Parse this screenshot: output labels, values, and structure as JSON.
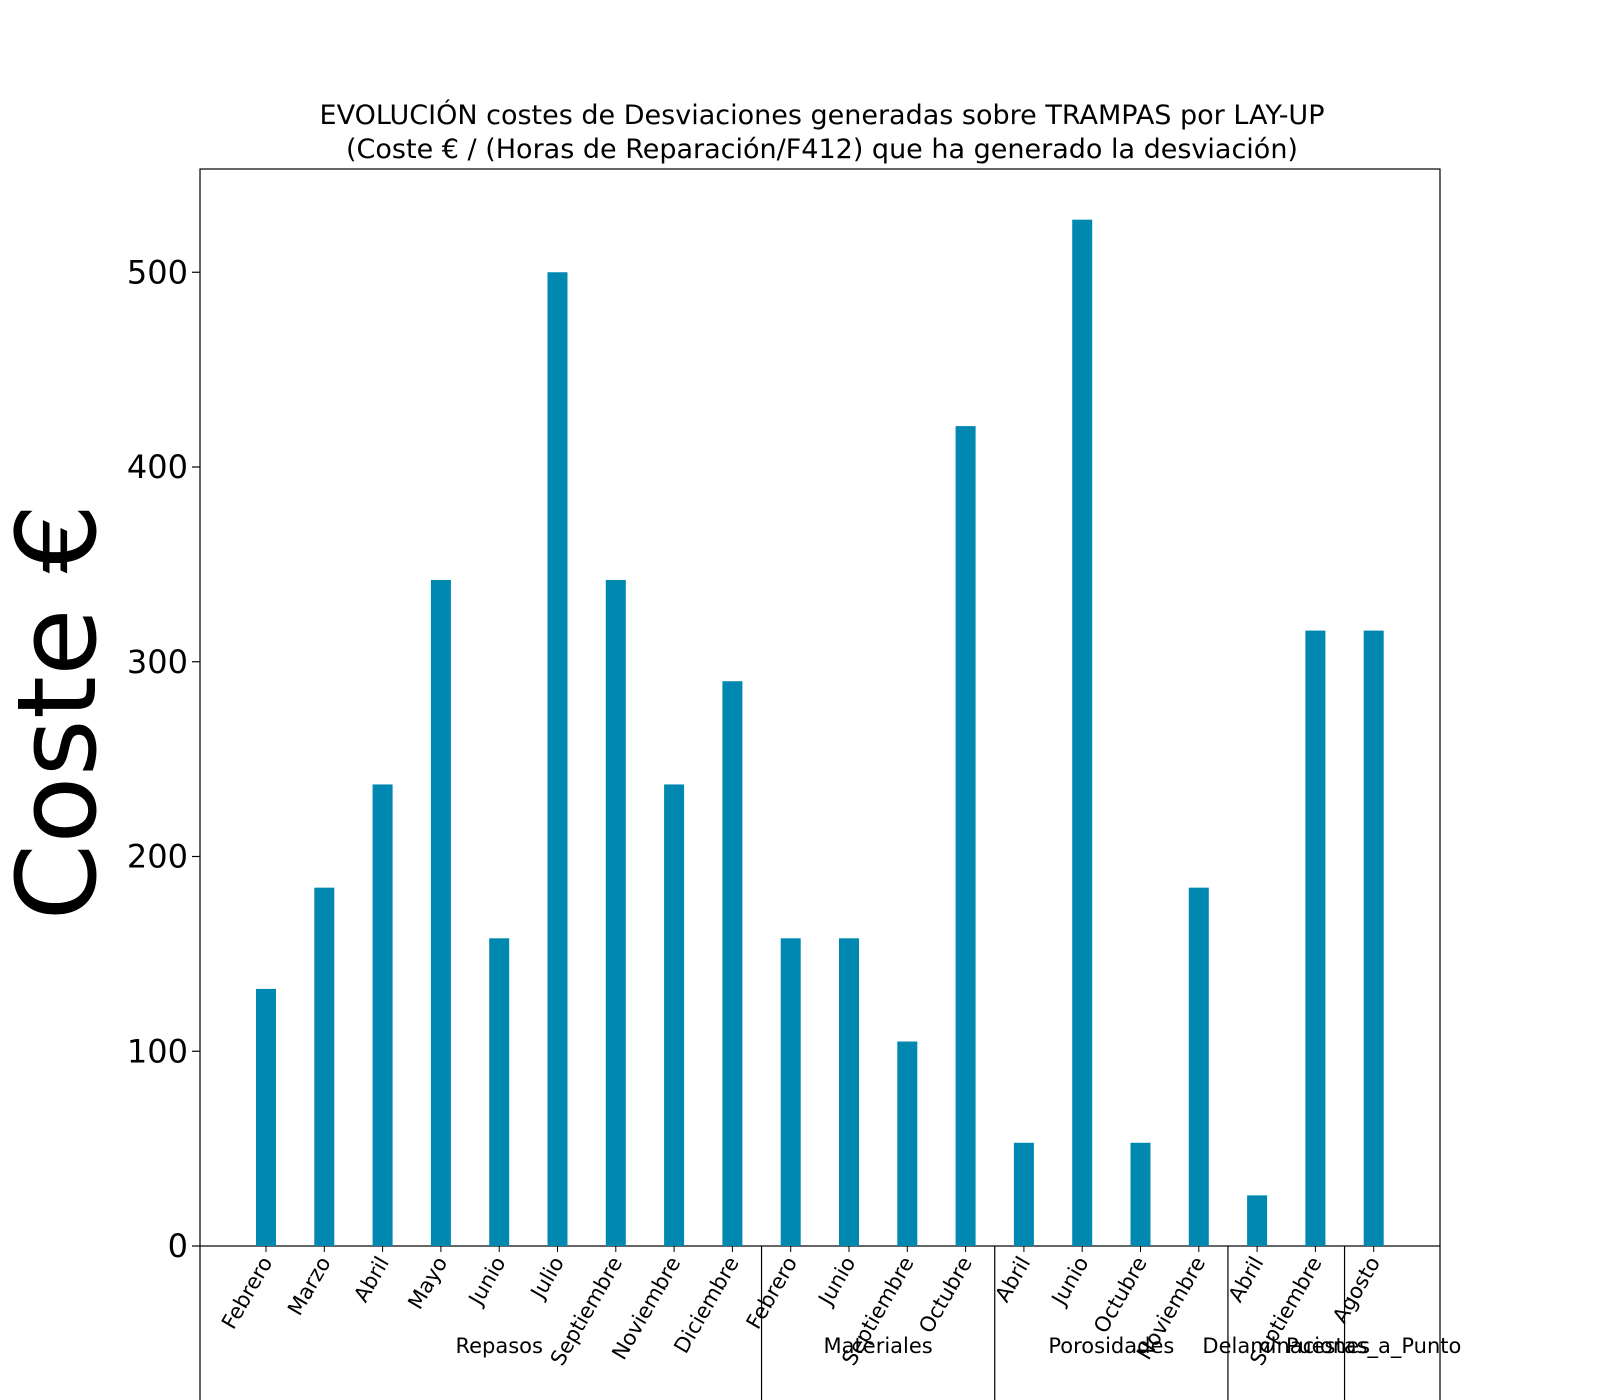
{
  "chart_data": {
    "type": "bar",
    "title": "EVOLUCIÓN costes de Desviaciones  generadas  sobre TRAMPAS por LAY-UP",
    "subtitle": "(Coste € / (Horas de Reparación/F412) que ha generado la desviación)",
    "xlabel": "",
    "ylabel": "Coste €",
    "ylim": [
      0,
      555
    ],
    "yticks": [
      "0",
      "100",
      "200",
      "300",
      "400",
      "500"
    ],
    "bar_color": "#0088b0",
    "grid": false,
    "groups": [
      {
        "name": "Repasos",
        "categories": [
          "Febrero",
          "Marzo",
          "Abril",
          "Mayo",
          "Junio",
          "Julio",
          "Septiembre",
          "Noviembre",
          "Diciembre"
        ],
        "values": [
          132,
          184,
          237,
          342,
          158,
          500,
          342,
          237,
          290
        ]
      },
      {
        "name": "Materiales",
        "categories": [
          "Febrero",
          "Junio",
          "Septiembre",
          "Octubre"
        ],
        "values": [
          158,
          158,
          105,
          421
        ]
      },
      {
        "name": "Porosidades",
        "categories": [
          "Abril",
          "Junio",
          "Octubre",
          "Noviembre"
        ],
        "values": [
          53,
          527,
          53,
          184
        ]
      },
      {
        "name": "Delaminaciones",
        "categories": [
          "Abril",
          "Septiembre"
        ],
        "values": [
          26,
          316
        ]
      },
      {
        "name": "Puestas_a_Punto",
        "categories": [
          "Agosto"
        ],
        "values": [
          316
        ]
      }
    ]
  }
}
